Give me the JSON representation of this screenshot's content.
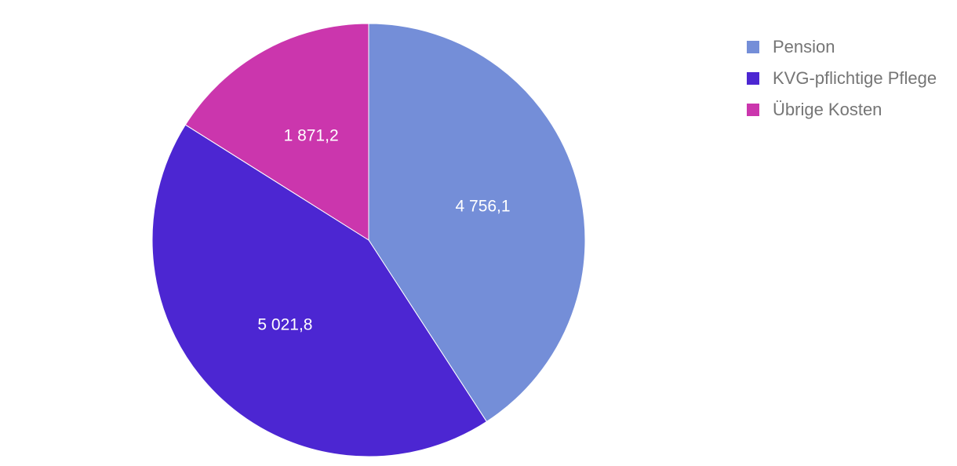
{
  "chart_data": {
    "type": "pie",
    "title": "",
    "categories": [
      "Pension",
      "KVG-pflichtige Pflege",
      "Übrige Kosten"
    ],
    "values": [
      4756.1,
      5021.8,
      1871.2
    ],
    "value_labels": [
      "4 756,1",
      "5 021,8",
      "1 871,2"
    ],
    "colors": [
      "#748ed8",
      "#4c26d2",
      "#cb36ad"
    ],
    "legend_position": "top-right"
  }
}
